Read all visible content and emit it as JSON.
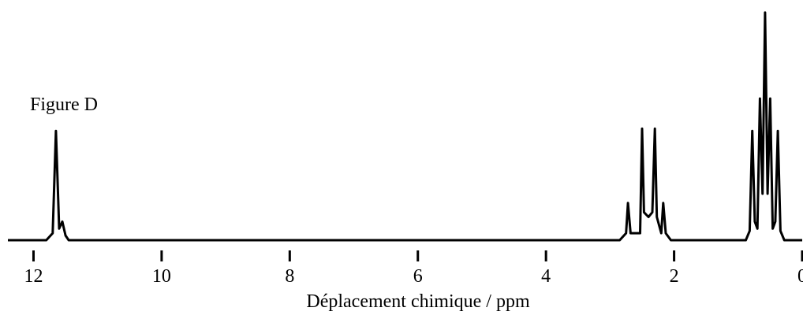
{
  "chart_data": {
    "type": "line",
    "title": "Figure D",
    "x_label": "Déplacement chimique / ppm",
    "xlim": [
      12.4,
      0
    ],
    "xticks": [
      12,
      10,
      8,
      6,
      4,
      2,
      0
    ],
    "ylim": [
      0,
      100
    ],
    "series": [
      {
        "color": "#000000",
        "x": [
          12.4,
          11.8,
          11.7,
          11.65,
          11.6,
          11.55,
          11.5,
          11.45,
          2.85,
          2.75,
          2.72,
          2.68,
          2.53,
          2.5,
          2.47,
          2.4,
          2.34,
          2.3,
          2.27,
          2.2,
          2.17,
          2.13,
          2.05,
          0.88,
          0.82,
          0.78,
          0.74,
          0.7,
          0.66,
          0.62,
          0.58,
          0.54,
          0.5,
          0.46,
          0.42,
          0.38,
          0.34,
          0.28,
          0
        ],
        "values": [
          0,
          0,
          3,
          47,
          5,
          8,
          2,
          0,
          0,
          3,
          16,
          3,
          3,
          48,
          12,
          10,
          12,
          48,
          10,
          3,
          16,
          3,
          0,
          0,
          4,
          47,
          8,
          5,
          61,
          20,
          98,
          20,
          61,
          5,
          8,
          47,
          4,
          0,
          0
        ]
      }
    ]
  }
}
